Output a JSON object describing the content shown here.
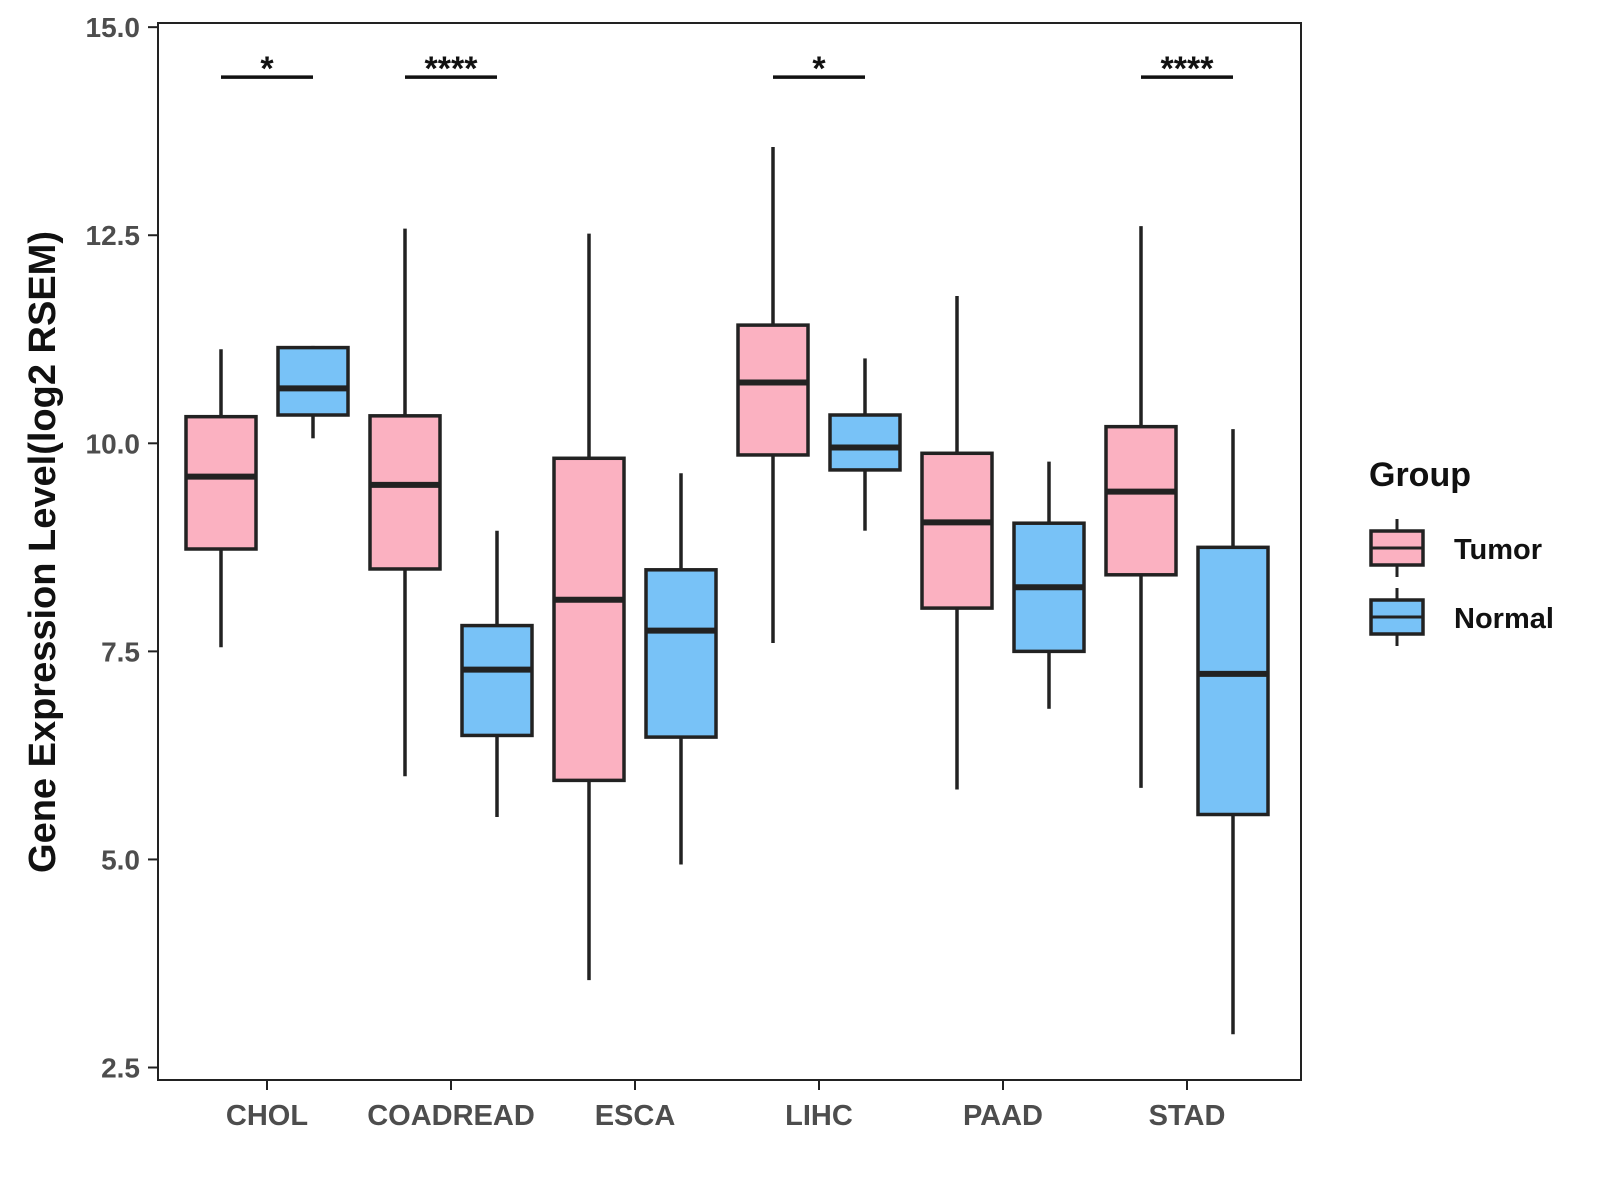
{
  "chart_data": {
    "type": "boxplot",
    "title": "",
    "xlabel": "",
    "ylabel": "Gene Expression Level(log2 RSEM)",
    "ylim": [
      2.35,
      15.05
    ],
    "yticks": [
      2.5,
      5.0,
      7.5,
      10.0,
      12.5,
      15.0
    ],
    "ytick_labels": [
      "2.5",
      "5.0",
      "7.5",
      "10.0",
      "12.5",
      "15.0"
    ],
    "categories": [
      "CHOL",
      "COADREAD",
      "ESCA",
      "LIHC",
      "PAAD",
      "STAD"
    ],
    "legend": {
      "title": "Group",
      "position": "right",
      "entries": [
        {
          "name": "Tumor",
          "color": "#FBB1C1"
        },
        {
          "name": "Normal",
          "color": "#78C2F7"
        }
      ]
    },
    "series": [
      {
        "name": "Tumor",
        "color": "#FBB1C1",
        "boxes": [
          {
            "min": 7.55,
            "q1": 8.73,
            "median": 9.6,
            "q3": 10.32,
            "max": 11.13
          },
          {
            "min": 6.0,
            "q1": 8.49,
            "median": 9.5,
            "q3": 10.33,
            "max": 12.58
          },
          {
            "min": 3.55,
            "q1": 5.95,
            "median": 8.12,
            "q3": 9.82,
            "max": 12.52
          },
          {
            "min": 7.6,
            "q1": 9.86,
            "median": 10.73,
            "q3": 11.42,
            "max": 13.56
          },
          {
            "min": 5.84,
            "q1": 8.02,
            "median": 9.05,
            "q3": 9.88,
            "max": 11.77
          },
          {
            "min": 5.86,
            "q1": 8.42,
            "median": 9.42,
            "q3": 10.2,
            "max": 12.61
          }
        ]
      },
      {
        "name": "Normal",
        "color": "#78C2F7",
        "boxes": [
          {
            "min": 10.06,
            "q1": 10.34,
            "median": 10.66,
            "q3": 11.15,
            "max": 11.17
          },
          {
            "min": 5.51,
            "q1": 6.49,
            "median": 7.28,
            "q3": 7.81,
            "max": 8.95
          },
          {
            "min": 4.94,
            "q1": 6.47,
            "median": 7.75,
            "q3": 8.48,
            "max": 9.64
          },
          {
            "min": 8.95,
            "q1": 9.68,
            "median": 9.95,
            "q3": 10.34,
            "max": 11.02
          },
          {
            "min": 6.81,
            "q1": 7.5,
            "median": 8.27,
            "q3": 9.04,
            "max": 9.78
          },
          {
            "min": 2.9,
            "q1": 5.54,
            "median": 7.23,
            "q3": 8.75,
            "max": 10.17
          }
        ]
      }
    ],
    "significance": [
      {
        "category": "CHOL",
        "label": "*",
        "y": 14.4
      },
      {
        "category": "COADREAD",
        "label": "****",
        "y": 14.4
      },
      {
        "category": "LIHC",
        "label": "*",
        "y": 14.4
      },
      {
        "category": "STAD",
        "label": "****",
        "y": 14.4
      }
    ]
  }
}
